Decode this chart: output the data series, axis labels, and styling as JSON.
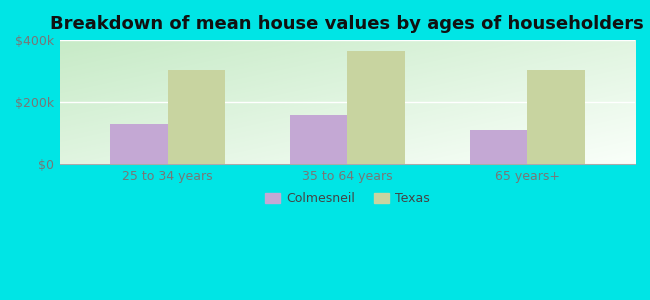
{
  "title": "Breakdown of mean house values by ages of householders",
  "categories": [
    "25 to 34 years",
    "35 to 64 years",
    "65 years+"
  ],
  "colmesneil_values": [
    130000,
    160000,
    110000
  ],
  "texas_values": [
    305000,
    365000,
    305000
  ],
  "ylim": [
    0,
    400000
  ],
  "ytick_labels": [
    "$0",
    "$200k",
    "$400k"
  ],
  "ytick_values": [
    0,
    200000,
    400000
  ],
  "colmesneil_color": "#c4a8d4",
  "texas_color": "#c8d4a0",
  "background_color": "#00e5e5",
  "title_fontsize": 13,
  "tick_fontsize": 9,
  "legend_fontsize": 9,
  "bar_width": 0.32,
  "legend_labels": [
    "Colmesneil",
    "Texas"
  ],
  "grid_color": "#ffffff",
  "tick_color": "#777777",
  "gradient_topleft": [
    0.78,
    0.92,
    0.78
  ],
  "gradient_bottomright": [
    0.98,
    1.0,
    0.98
  ]
}
